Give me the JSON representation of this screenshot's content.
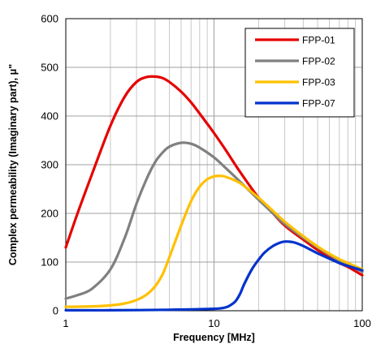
{
  "chart_data": {
    "type": "line",
    "xlabel": "Frequency [MHz]",
    "ylabel": "Complex permeability (Imaginary part), μ\"",
    "x_scale": "log",
    "xlim": [
      1,
      100
    ],
    "ylim": [
      0,
      600
    ],
    "x_ticks": [
      "1",
      "10",
      "100"
    ],
    "y_ticks": [
      "0",
      "100",
      "200",
      "300",
      "400",
      "500",
      "600"
    ],
    "grid": true,
    "legend_position": "top-right",
    "series": [
      {
        "name": "FPP-01",
        "color": "#e60000",
        "x": [
          1,
          1.2,
          1.5,
          2,
          2.5,
          3,
          3.5,
          4,
          4.5,
          5,
          6,
          7,
          8,
          10,
          12,
          15,
          20,
          25,
          30,
          40,
          50,
          60,
          70,
          80,
          100
        ],
        "y": [
          130,
          200,
          280,
          380,
          440,
          470,
          480,
          481,
          478,
          470,
          450,
          428,
          405,
          365,
          330,
          285,
          232,
          200,
          175,
          146,
          125,
          110,
          98,
          90,
          73
        ]
      },
      {
        "name": "FPP-02",
        "color": "#808080",
        "x": [
          1,
          1.2,
          1.5,
          2,
          2.5,
          3,
          3.5,
          4,
          4.5,
          5,
          6,
          7,
          8,
          10,
          12,
          15,
          20,
          25,
          30,
          40,
          50,
          60,
          70,
          80,
          100
        ],
        "y": [
          25,
          32,
          45,
          85,
          150,
          220,
          270,
          305,
          325,
          337,
          345,
          343,
          335,
          315,
          293,
          265,
          228,
          200,
          178,
          150,
          130,
          115,
          103,
          95,
          80
        ]
      },
      {
        "name": "FPP-03",
        "color": "#ffc000",
        "x": [
          1,
          1.5,
          2,
          2.5,
          3,
          3.5,
          4,
          4.5,
          5,
          6,
          7,
          8,
          9,
          10,
          11,
          12,
          15,
          20,
          25,
          30,
          40,
          50,
          60,
          70,
          80,
          100
        ],
        "y": [
          8,
          9,
          11,
          15,
          22,
          33,
          50,
          75,
          110,
          175,
          225,
          255,
          270,
          276,
          277,
          275,
          262,
          232,
          205,
          183,
          153,
          132,
          117,
          106,
          98,
          85
        ]
      },
      {
        "name": "FPP-07",
        "color": "#0033cc",
        "x": [
          1,
          2,
          5,
          10,
          12,
          13,
          14,
          15,
          16,
          18,
          20,
          22,
          25,
          28,
          30,
          32,
          35,
          40,
          50,
          60,
          70,
          80,
          100
        ],
        "y": [
          1,
          1,
          2,
          4,
          7,
          12,
          20,
          35,
          55,
          85,
          105,
          120,
          133,
          140,
          142,
          142,
          140,
          133,
          118,
          107,
          98,
          92,
          83
        ]
      }
    ]
  }
}
